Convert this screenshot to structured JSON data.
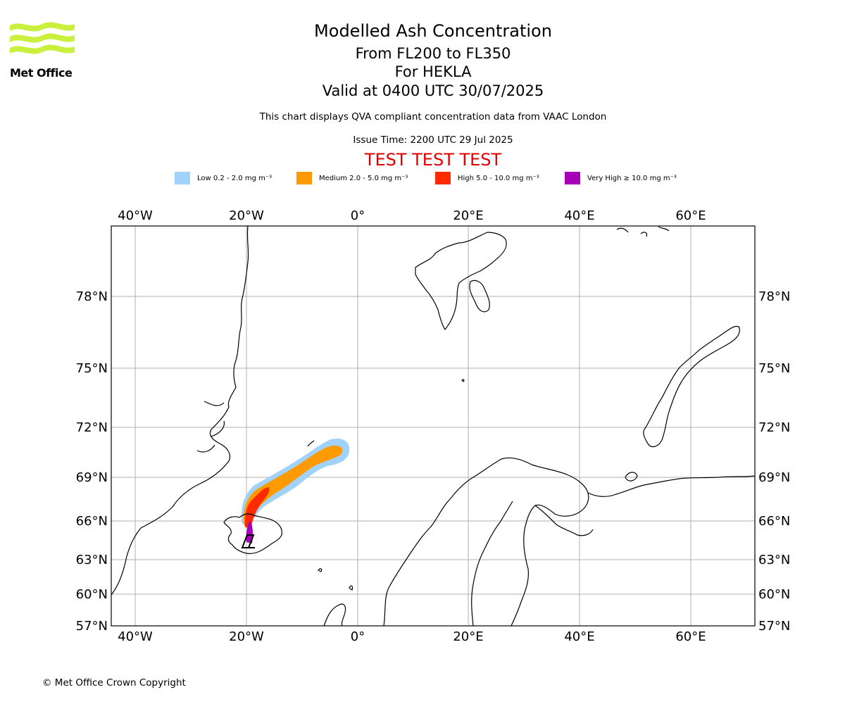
{
  "header": {
    "title": "Modelled Ash Concentration",
    "line1": "From FL200 to FL350",
    "line2": "For HEKLA",
    "line3": "Valid at 0400 UTC 30/07/2025",
    "description": "This chart displays QVA compliant concentration data from VAAC London",
    "issue_time": "Issue Time: 2200 UTC 29 Jul 2025",
    "test_banner": "TEST TEST TEST"
  },
  "logo": {
    "text": "Met Office",
    "colors": [
      "#c8f03c"
    ]
  },
  "legend": [
    {
      "label": "Low 0.2 - 2.0 mg m⁻³",
      "color": "#a0d2fa"
    },
    {
      "label": "Medium 2.0 - 5.0 mg m⁻³",
      "color": "#ff9a00"
    },
    {
      "label": "High 5.0 - 10.0 mg m⁻³",
      "color": "#ff2a00"
    },
    {
      "label": "Very High ≥ 10.0 mg m⁻³",
      "color": "#a800b8"
    }
  ],
  "map": {
    "lon_ticks": [
      "40°W",
      "20°W",
      "0°",
      "20°E",
      "40°E",
      "60°E"
    ],
    "lat_ticks": [
      "78°N",
      "75°N",
      "72°N",
      "69°N",
      "66°N",
      "63°N",
      "60°N",
      "57°N"
    ],
    "grid": true,
    "volcano": "HEKLA",
    "gridline_color": "#b0b0b0"
  },
  "footer": {
    "copyright": "© Met Office Crown Copyright"
  }
}
